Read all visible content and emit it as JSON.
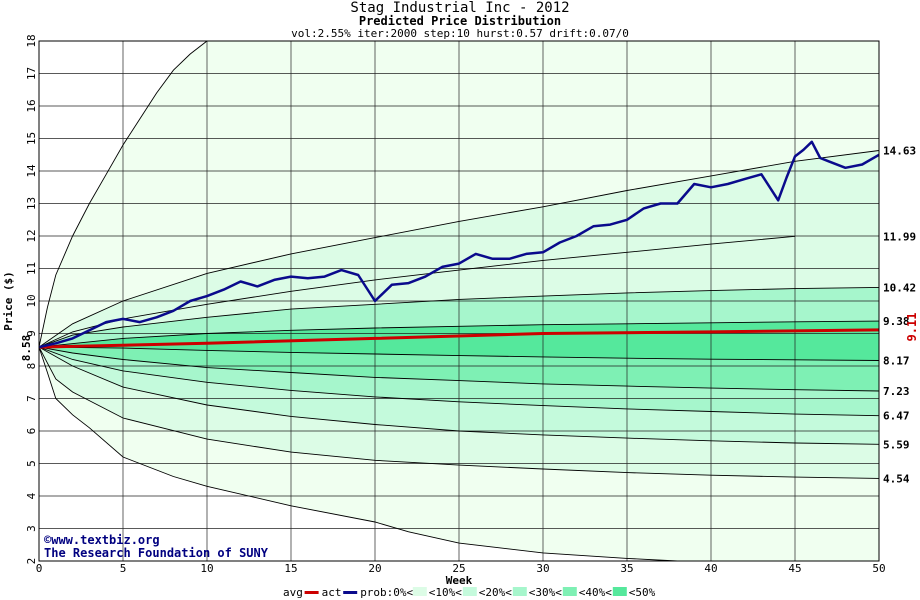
{
  "header": {
    "title": "Stag Industrial Inc - 2012",
    "subtitle": "Predicted Price Distribution",
    "params": "vol:2.55% iter:2000 step:10 hurst:0.57 drift:0.07/0"
  },
  "watermark": {
    "site": "www.textbiz.org",
    "org": "The Research Foundation of SUNY",
    "copyright_symbol": "©"
  },
  "colors": {
    "actual": "#0a0a8c",
    "average": "#cc0000",
    "band0": "#f0fff0",
    "band10": "#dcfce6",
    "band20": "#c4fadc",
    "band30": "#a6f6cc",
    "band40": "#7ef0b4",
    "band50": "#55e89c",
    "grid": "#222222"
  },
  "chart_data": {
    "type": "line",
    "xlabel": "Week",
    "ylabel": "Price ($)",
    "xlim": [
      0,
      50
    ],
    "ylim": [
      2,
      18
    ],
    "grid": true,
    "xticks": [
      "0",
      "5",
      "10",
      "15",
      "20",
      "25",
      "30",
      "35",
      "40",
      "45",
      "50"
    ],
    "yticks": [
      "2",
      "3",
      "4",
      "5",
      "6",
      "7",
      "8",
      "9",
      "10",
      "11",
      "12",
      "13",
      "14",
      "15",
      "16",
      "17",
      "18"
    ],
    "start_label": "8.58",
    "end_label": "9.11",
    "right_labels": [
      "14.63",
      "11.99",
      "10.42",
      "9.38",
      "8.17",
      "7.23",
      "6.47",
      "5.59",
      "4.54"
    ],
    "band_curves": [
      {
        "name": "outer-upper",
        "x": [
          0,
          0.5,
          1,
          2,
          3,
          4,
          5,
          6,
          7,
          8,
          9,
          10
        ],
        "y": [
          8.58,
          9.8,
          10.8,
          12.0,
          13.0,
          13.9,
          14.8,
          15.6,
          16.4,
          17.1,
          17.6,
          18.0
        ]
      },
      {
        "name": "upper-3",
        "x": [
          0,
          2,
          5,
          10,
          15,
          20,
          25,
          30,
          35,
          40,
          45,
          50
        ],
        "y": [
          8.58,
          9.3,
          10.0,
          10.85,
          11.45,
          11.95,
          12.45,
          12.9,
          13.4,
          13.85,
          14.3,
          14.63
        ]
      },
      {
        "name": "upper-2",
        "x": [
          0,
          2,
          5,
          10,
          15,
          20,
          25,
          30,
          35,
          40,
          45
        ],
        "y": [
          8.58,
          9.05,
          9.45,
          9.9,
          10.3,
          10.65,
          10.95,
          11.25,
          11.5,
          11.75,
          11.99
        ]
      },
      {
        "name": "upper-1",
        "x": [
          0,
          2,
          5,
          10,
          15,
          20,
          25,
          30,
          35,
          40,
          45,
          50
        ],
        "y": [
          8.58,
          8.95,
          9.2,
          9.5,
          9.75,
          9.9,
          10.05,
          10.15,
          10.25,
          10.32,
          10.38,
          10.42
        ]
      },
      {
        "name": "mid-upper",
        "x": [
          0,
          5,
          10,
          15,
          20,
          25,
          30,
          35,
          40,
          45,
          50
        ],
        "y": [
          8.58,
          8.85,
          9.0,
          9.1,
          9.17,
          9.22,
          9.27,
          9.3,
          9.33,
          9.36,
          9.38
        ]
      },
      {
        "name": "mid-lower",
        "x": [
          0,
          5,
          10,
          15,
          20,
          25,
          30,
          35,
          40,
          45,
          50
        ],
        "y": [
          8.58,
          8.55,
          8.48,
          8.42,
          8.37,
          8.32,
          8.28,
          8.24,
          8.21,
          8.19,
          8.17
        ]
      },
      {
        "name": "lower-1",
        "x": [
          0,
          2,
          5,
          10,
          15,
          20,
          25,
          30,
          35,
          40,
          45,
          50
        ],
        "y": [
          8.58,
          8.4,
          8.2,
          7.95,
          7.8,
          7.65,
          7.55,
          7.45,
          7.38,
          7.32,
          7.27,
          7.23
        ]
      },
      {
        "name": "lower-2",
        "x": [
          0,
          2,
          5,
          10,
          15,
          20,
          25,
          30,
          35,
          40,
          45,
          50
        ],
        "y": [
          8.58,
          8.2,
          7.85,
          7.5,
          7.25,
          7.05,
          6.9,
          6.78,
          6.68,
          6.6,
          6.52,
          6.47
        ]
      },
      {
        "name": "lower-3",
        "x": [
          0,
          2,
          5,
          10,
          15,
          20,
          25,
          30,
          35,
          40,
          45,
          50
        ],
        "y": [
          8.58,
          8.0,
          7.35,
          6.8,
          6.45,
          6.2,
          6.0,
          5.88,
          5.78,
          5.7,
          5.63,
          5.59
        ]
      },
      {
        "name": "lower-4",
        "x": [
          0,
          1,
          2,
          5,
          10,
          15,
          20,
          25,
          30,
          35,
          40,
          45,
          50
        ],
        "y": [
          8.58,
          7.6,
          7.2,
          6.4,
          5.75,
          5.35,
          5.1,
          4.95,
          4.83,
          4.72,
          4.64,
          4.58,
          4.54
        ]
      },
      {
        "name": "outer-lower",
        "x": [
          0,
          0.5,
          1,
          2,
          3,
          5,
          8,
          10,
          15,
          20,
          22,
          25,
          30,
          35,
          38
        ],
        "y": [
          8.58,
          7.8,
          7.0,
          6.5,
          6.1,
          5.2,
          4.6,
          4.3,
          3.7,
          3.2,
          2.9,
          2.55,
          2.25,
          2.08,
          2.0
        ]
      }
    ],
    "series": [
      {
        "name": "act",
        "x": [
          0,
          1,
          2,
          3,
          4,
          5,
          6,
          7,
          8,
          9,
          10,
          11,
          12,
          13,
          14,
          15,
          16,
          17,
          18,
          19,
          20,
          21,
          22,
          23,
          24,
          25,
          26,
          27,
          28,
          29,
          30,
          31,
          32,
          33,
          34,
          35,
          36,
          37,
          38,
          39,
          40,
          41,
          42,
          43,
          44,
          44.5,
          45,
          45.5,
          46,
          46.5,
          47,
          48,
          49,
          50
        ],
        "y": [
          8.58,
          8.7,
          8.85,
          9.1,
          9.35,
          9.45,
          9.35,
          9.5,
          9.7,
          10.0,
          10.15,
          10.35,
          10.6,
          10.45,
          10.65,
          10.75,
          10.7,
          10.75,
          10.95,
          10.8,
          10.0,
          10.5,
          10.55,
          10.75,
          11.05,
          11.15,
          11.45,
          11.3,
          11.3,
          11.45,
          11.5,
          11.8,
          12.0,
          12.3,
          12.35,
          12.5,
          12.85,
          13.0,
          13.0,
          13.6,
          13.5,
          13.6,
          13.75,
          13.9,
          13.1,
          13.8,
          14.45,
          14.65,
          14.9,
          14.4,
          14.3,
          14.1,
          14.2,
          14.5
        ]
      },
      {
        "name": "avg",
        "x": [
          0,
          10,
          20,
          30,
          40,
          50
        ],
        "y": [
          8.58,
          8.7,
          8.85,
          9.0,
          9.05,
          9.11
        ]
      }
    ],
    "legend": {
      "position": "bottom",
      "items": [
        "avg",
        "act",
        "prob:0%<",
        "<10%<",
        "<20%<",
        "<30%<",
        "<40%<",
        "<50%"
      ]
    }
  }
}
